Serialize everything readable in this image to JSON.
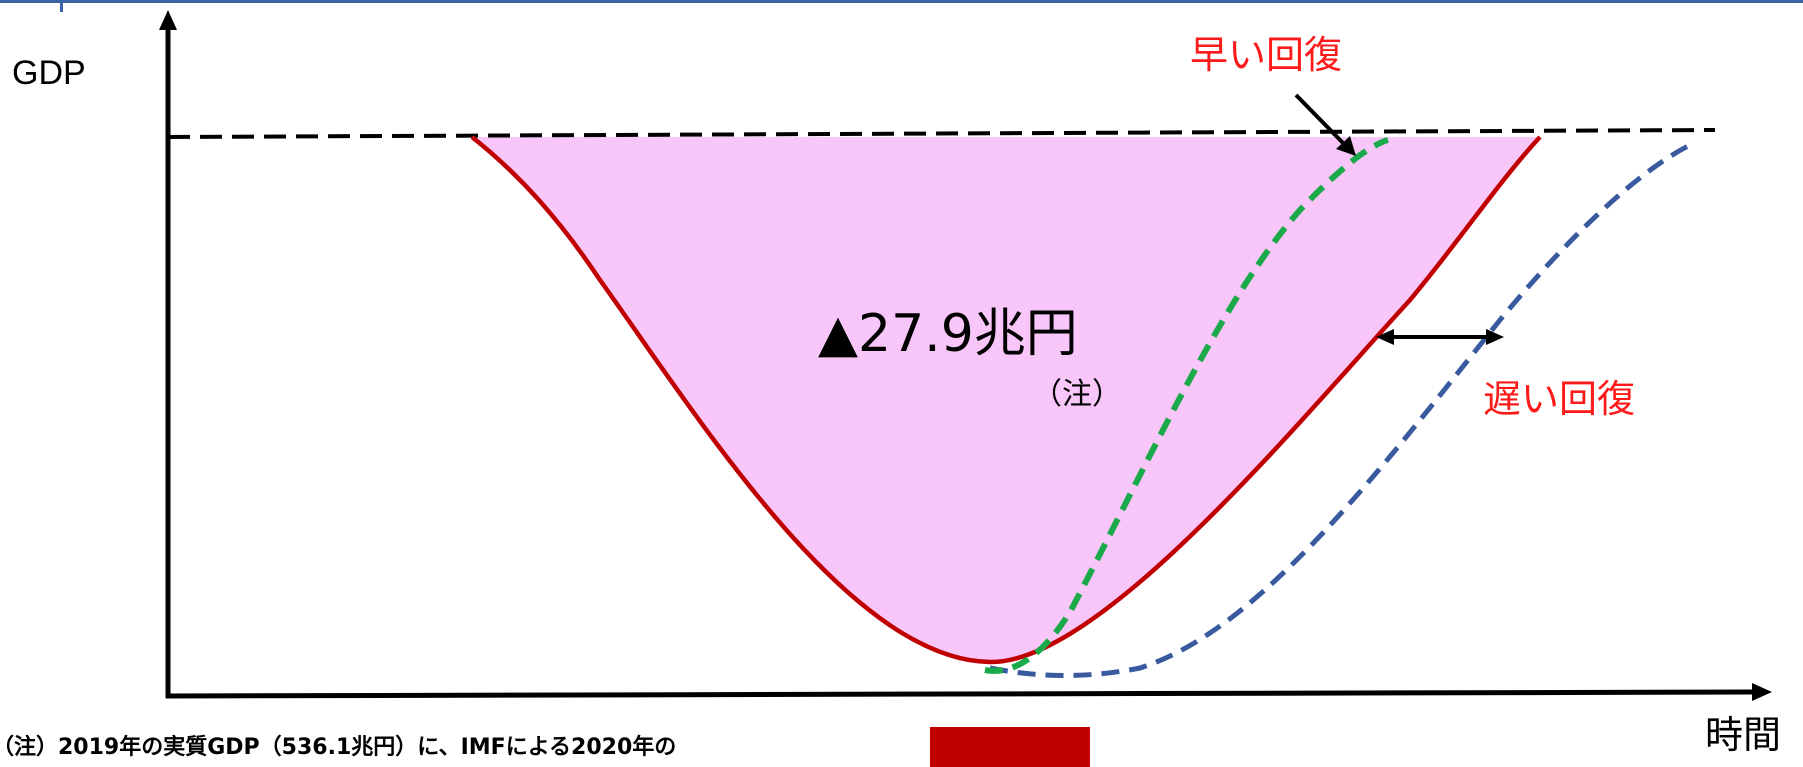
{
  "labels": {
    "y_axis": "GDP",
    "x_axis": "時間",
    "fast_recovery": "早い回復",
    "slow_recovery": "遅い回復",
    "loss_value": "▲27.9兆円",
    "loss_note": "（注）",
    "footnote": "（注）2019年の実質GDP（536.1兆円）に、IMFによる2020年の"
  },
  "colors": {
    "frame": "#3a64a3",
    "loss_area_fill": "#f9c6f9",
    "baseline_curve": "#c00000",
    "fast_recovery_line": "#1aaa4a",
    "slow_recovery_line": "#3a5aa0",
    "label_red": "#ff1a1a",
    "footer_block": "#c00000"
  }
}
